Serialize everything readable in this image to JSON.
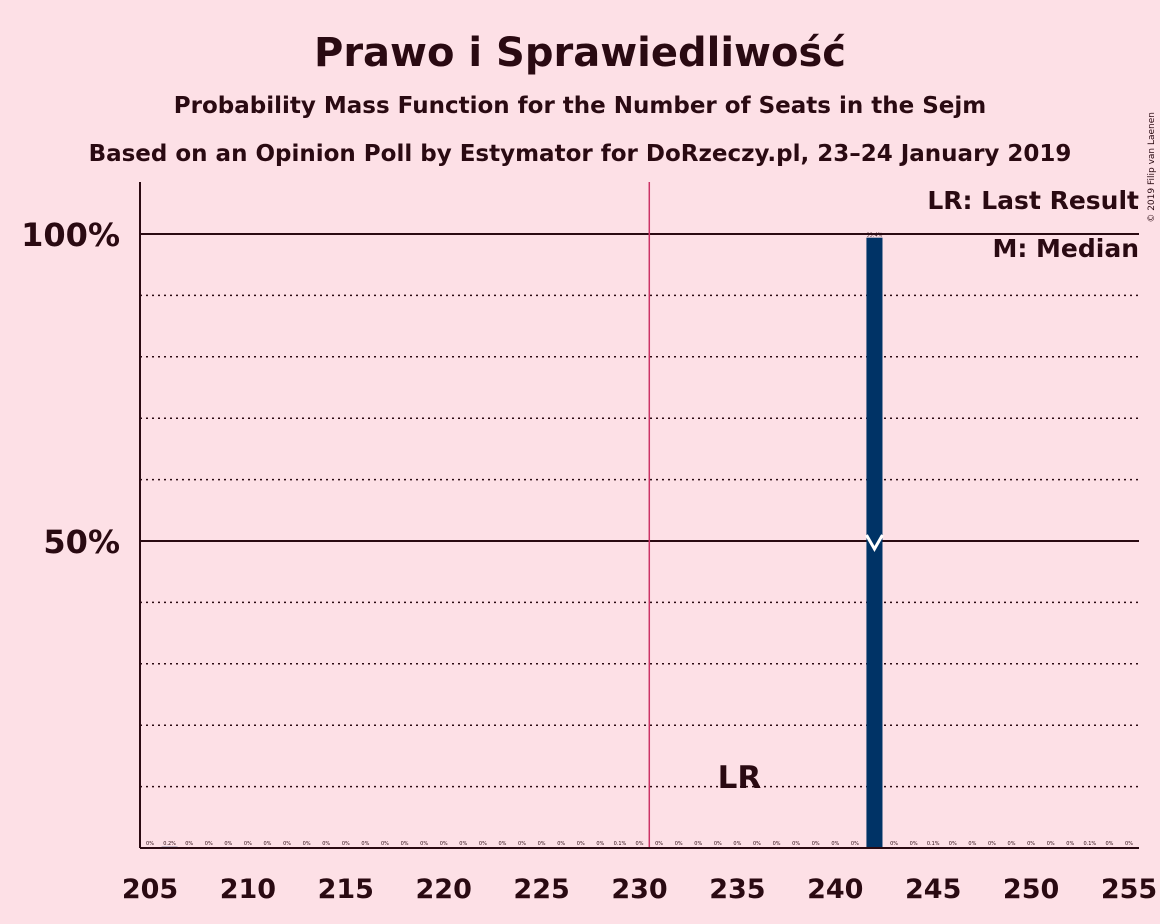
{
  "chart_data": {
    "type": "bar",
    "title": "Prawo i Sprawiedliwość",
    "subtitle": "Probability Mass Function for the Number of Seats in the Sejm",
    "subtitle2": "Based on an Opinion Poll by Estymator for DoRzeczy.pl, 23–24 January 2019",
    "copyright": "© 2019 Filip van Laenen",
    "legend": {
      "lr": "LR: Last Result",
      "median": "M: Median",
      "placement": "top-right"
    },
    "lr_label": "LR",
    "last_result": 235,
    "majority_line": 230.5,
    "median": 242,
    "x": [
      205,
      206,
      207,
      208,
      209,
      210,
      211,
      212,
      213,
      214,
      215,
      216,
      217,
      218,
      219,
      220,
      221,
      222,
      223,
      224,
      225,
      226,
      227,
      228,
      229,
      230,
      231,
      232,
      233,
      234,
      235,
      236,
      237,
      238,
      239,
      240,
      241,
      242,
      243,
      244,
      245,
      246,
      247,
      248,
      249,
      250,
      251,
      252,
      253,
      254,
      255
    ],
    "values": [
      0,
      0.2,
      0,
      0,
      0,
      0,
      0,
      0,
      0,
      0,
      0,
      0,
      0,
      0,
      0,
      0,
      0,
      0,
      0,
      0,
      0,
      0,
      0,
      0,
      0.1,
      0,
      0,
      0,
      0,
      0,
      0,
      0,
      0,
      0,
      0,
      0,
      0,
      99.4,
      0,
      0,
      0.1,
      0,
      0,
      0,
      0,
      0,
      0,
      0,
      0.1,
      0,
      0
    ],
    "data_labels": [
      "0%",
      "0.2%",
      "0%",
      "0%",
      "0%",
      "0%",
      "0%",
      "0%",
      "0%",
      "0%",
      "0%",
      "0%",
      "0%",
      "0%",
      "0%",
      "0%",
      "0%",
      "0%",
      "0%",
      "0%",
      "0%",
      "0%",
      "0%",
      "0%",
      "0.1%",
      "0%",
      "0%",
      "0%",
      "0%",
      "0%",
      "0%",
      "0%",
      "0%",
      "0%",
      "0%",
      "0%",
      "0%",
      "99.4%",
      "0%",
      "0%",
      "0.1%",
      "0%",
      "0%",
      "0%",
      "0%",
      "0%",
      "0%",
      "0%",
      "0.1%",
      "0%",
      "0%"
    ],
    "xticks": [
      205,
      210,
      215,
      220,
      225,
      230,
      235,
      240,
      245,
      250,
      255
    ],
    "xtick_labels": [
      "205",
      "210",
      "215",
      "220",
      "225",
      "230",
      "235",
      "240",
      "245",
      "250",
      "255"
    ],
    "yticks": [
      50,
      100
    ],
    "ytick_labels": [
      "50%",
      "100%"
    ],
    "ylim": [
      0,
      100
    ],
    "grid": "dotted every 10%",
    "colors": {
      "bar": "#003366",
      "lr_line": "#cc3366",
      "background": "#fde0e6",
      "text": "#2a0a12"
    }
  }
}
